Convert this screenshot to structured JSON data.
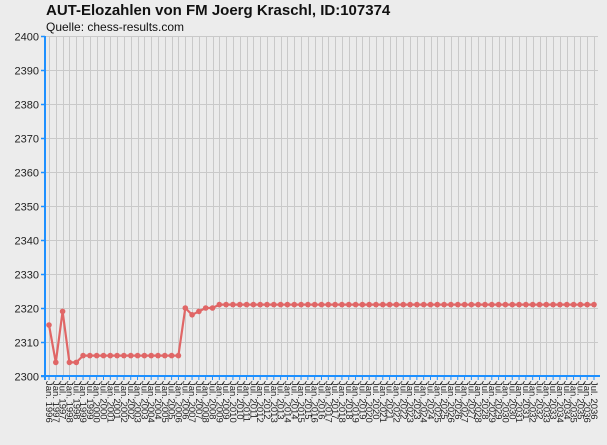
{
  "chart_data": {
    "type": "line",
    "title": "AUT-Elozahlen von FM Joerg Kraschl, ID:107374",
    "subtitle": "Quelle: chess-results.com",
    "xlabel": "",
    "ylabel": "",
    "ylim": [
      2300,
      2400
    ],
    "yticks": [
      2300,
      2310,
      2320,
      2330,
      2340,
      2350,
      2360,
      2370,
      2380,
      2390,
      2400
    ],
    "grid": true,
    "color": "#e06666",
    "x": [
      "Jan. 1996",
      "Jan. 1997",
      "Jul. 1997",
      "Jan. 1998",
      "Jul. 1998",
      "Jan. 1999",
      "Jul. 1999",
      "Jan. 2000",
      "Jul. 2000",
      "Jan. 2001",
      "Jul. 2001",
      "Jan. 2002",
      "Jul. 2002",
      "Jan. 2003",
      "Jul. 2003",
      "Jan. 2004",
      "Jul. 2004",
      "Jan. 2005",
      "Jul. 2005",
      "Jan. 2006",
      "Jul. 2006",
      "Jan. 2007",
      "Jul. 2007",
      "Jan. 2008",
      "Jul. 2008",
      "Jan. 2009",
      "Jul. 2009",
      "Jan. 2010",
      "Jul. 2010",
      "Jan. 2011",
      "Jul. 2011",
      "Jan. 2012",
      "Jul. 2012",
      "Jan. 2013",
      "Jul. 2013",
      "Jan. 2014",
      "Jul. 2014",
      "Jan. 2015",
      "Jul. 2015",
      "Jan. 2016",
      "Jul. 2016",
      "Jan. 2017",
      "Jul. 2017",
      "Jan. 2018",
      "Jul. 2018",
      "Jan. 2019",
      "Jul. 2019",
      "Jan. 2020",
      "Jul. 2020",
      "Jan. 2021",
      "Jul. 2021",
      "Jan. 2022",
      "Jul. 2022",
      "Jan. 2023",
      "Jul. 2023",
      "Jan. 2024",
      "Jul. 2024",
      "Jan. 2025",
      "Jul. 2025",
      "Jan. 2026",
      "Jul. 2026",
      "Jan. 2027",
      "Jul. 2027",
      "Jan. 2028",
      "Jul. 2028",
      "Jan. 2029",
      "Jul. 2029",
      "Jan. 2030",
      "Jul. 2030",
      "Jan. 2031",
      "Jul. 2031",
      "Jan. 2032",
      "Jul. 2032",
      "Jan. 2033",
      "Jul. 2033",
      "Jan. 2034",
      "Jul. 2034",
      "Jan. 2035",
      "Jul. 2035",
      "Jan. 2036",
      "Jul. 2036"
    ],
    "values": [
      2315,
      2304,
      2319,
      2304,
      2304,
      2306,
      2306,
      2306,
      2306,
      2306,
      2306,
      2306,
      2306,
      2306,
      2306,
      2306,
      2306,
      2306,
      2306,
      2306,
      2320,
      2318,
      2319,
      2320,
      2320,
      2321,
      2321,
      2321,
      2321,
      2321,
      2321,
      2321,
      2321,
      2321,
      2321,
      2321,
      2321,
      2321,
      2321,
      2321,
      2321,
      2321,
      2321,
      2321,
      2321,
      2321,
      2321,
      2321,
      2321,
      2321,
      2321,
      2321,
      2321,
      2321,
      2321,
      2321,
      2321,
      2321,
      2321,
      2321,
      2321,
      2321,
      2321,
      2321,
      2321,
      2321,
      2321,
      2321,
      2321,
      2321,
      2321,
      2321,
      2321,
      2321,
      2321,
      2321,
      2321,
      2321,
      2321,
      2321,
      2321
    ]
  }
}
